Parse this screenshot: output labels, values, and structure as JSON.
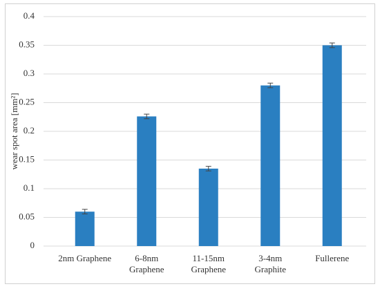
{
  "chart_data": {
    "type": "bar",
    "y_label": "wear spot area [mm²]",
    "categories": [
      "2nm Graphene",
      "6-8nm\nGraphene",
      "11-15nm\nGraphene",
      "3-4nm\nGraphite",
      "Fullerene"
    ],
    "values": [
      0.06,
      0.226,
      0.135,
      0.28,
      0.35
    ],
    "errors": [
      0.004,
      0.004,
      0.004,
      0.004,
      0.004
    ],
    "color": "#2a7fc1",
    "ylim": [
      0,
      0.4
    ],
    "yticks": [
      0,
      0.05,
      0.1,
      0.15,
      0.2,
      0.25,
      0.3,
      0.35,
      0.4
    ],
    "grid": true
  }
}
